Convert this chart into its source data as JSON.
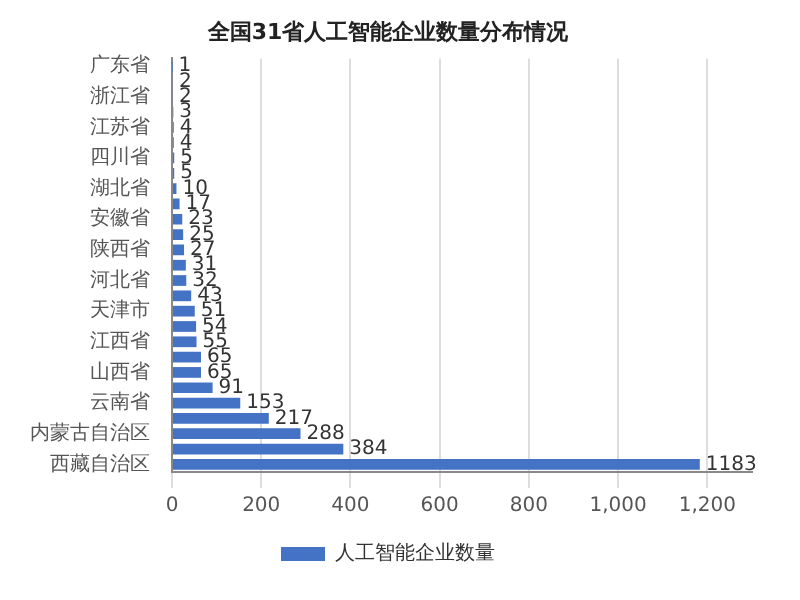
{
  "chart_data": {
    "type": "bar",
    "orientation": "horizontal",
    "title": "全国31省人工智能企业数量分布情况",
    "categories": [
      "广东省",
      null,
      "浙江省",
      null,
      "江苏省",
      null,
      "四川省",
      null,
      "湖北省",
      null,
      "安徽省",
      null,
      "陕西省",
      null,
      "河北省",
      null,
      "天津市",
      null,
      "江西省",
      null,
      "山西省",
      null,
      "云南省",
      null,
      "内蒙古自治区",
      null,
      "西藏自治区"
    ],
    "series": [
      {
        "name": "人工智能企业数量",
        "color": "#4472c4",
        "values": [
          1,
          2,
          2,
          3,
          4,
          4,
          5,
          5,
          10,
          17,
          23,
          25,
          27,
          31,
          32,
          43,
          51,
          54,
          55,
          65,
          65,
          91,
          153,
          217,
          288,
          384,
          1183
        ]
      }
    ],
    "xlim": [
      0,
      1300
    ],
    "xticks": [
      0,
      200,
      400,
      600,
      800,
      {
        "value": 1000,
        "label": "1,000"
      },
      {
        "value": 1200,
        "label": "1,200"
      }
    ],
    "grid": "x",
    "legend": "bottom",
    "data_labels": true
  }
}
